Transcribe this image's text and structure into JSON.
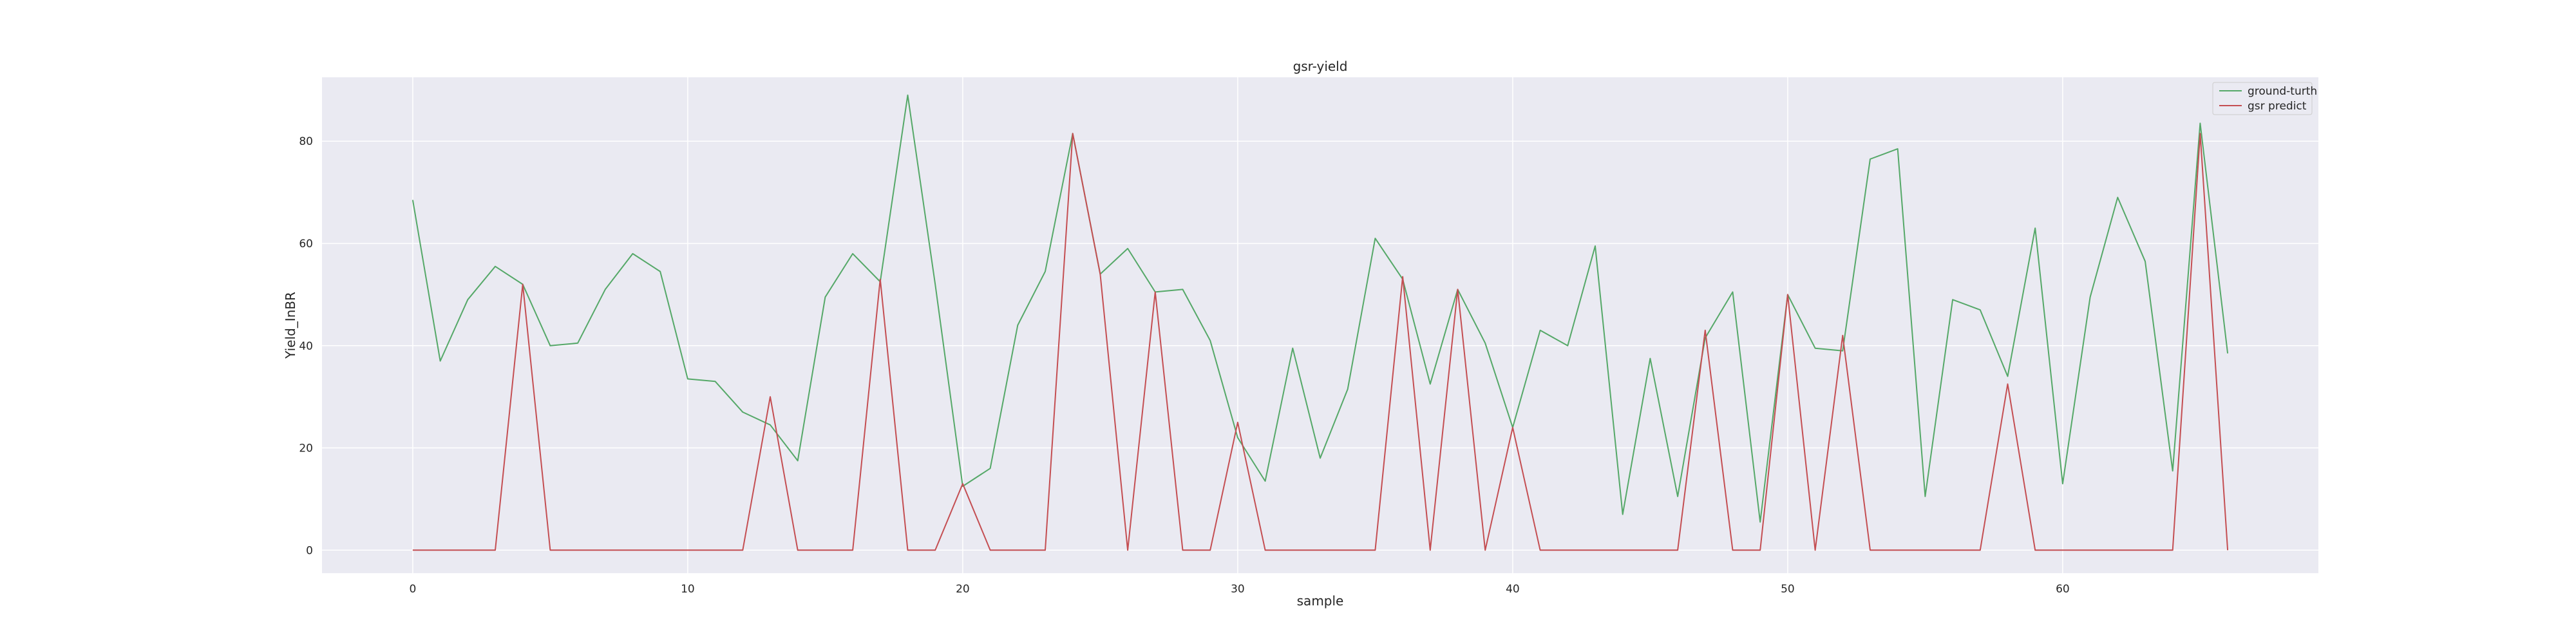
{
  "chart_data": {
    "type": "line",
    "title": "gsr-yield",
    "xlabel": "sample",
    "ylabel": "Yield_InBR",
    "xlim": [
      -3.3,
      69.3
    ],
    "ylim": [
      -4.5,
      92.5
    ],
    "xticks": [
      0,
      10,
      20,
      30,
      40,
      50,
      60
    ],
    "yticks": [
      0,
      20,
      40,
      60,
      80
    ],
    "grid": true,
    "legend": "top-right",
    "x": [
      0,
      1,
      2,
      3,
      4,
      5,
      6,
      7,
      8,
      9,
      10,
      11,
      12,
      13,
      14,
      15,
      16,
      17,
      18,
      19,
      20,
      21,
      22,
      23,
      24,
      25,
      26,
      27,
      28,
      29,
      30,
      31,
      32,
      33,
      34,
      35,
      36,
      37,
      38,
      39,
      40,
      41,
      42,
      43,
      44,
      45,
      46,
      47,
      48,
      49,
      50,
      51,
      52,
      53,
      54,
      55,
      56,
      57,
      58,
      59,
      60,
      61,
      62,
      63,
      64,
      65,
      66
    ],
    "series": [
      {
        "name": "ground-turth",
        "color": "#55a868",
        "values": [
          68.5,
          37,
          49,
          55.5,
          52,
          40,
          40.5,
          51,
          58,
          54.5,
          33.5,
          33,
          27,
          24.5,
          17.5,
          49.5,
          58,
          52.5,
          89,
          52,
          12.5,
          16,
          44,
          54.5,
          81.5,
          54,
          59,
          50.5,
          51,
          41,
          22,
          13.5,
          39.5,
          18,
          31.5,
          61,
          53,
          32.5,
          51,
          40.5,
          24,
          43,
          40,
          59.5,
          7,
          37.5,
          10.5,
          41.5,
          50.5,
          5.5,
          50,
          39.5,
          39,
          76.5,
          78.5,
          10.5,
          49,
          47,
          34,
          63,
          13,
          49.5,
          69,
          56.5,
          15.5,
          83.5,
          38.5
        ]
      },
      {
        "name": "gsr predict",
        "color": "#c44e52",
        "values": [
          0,
          0,
          0,
          0,
          52,
          0,
          0,
          0,
          0,
          0,
          0,
          0,
          0,
          30,
          0,
          0,
          0,
          53,
          0,
          0,
          13,
          0,
          0,
          0,
          81.5,
          54,
          0,
          50.5,
          0,
          0,
          25,
          0,
          0,
          0,
          0,
          0,
          53.5,
          0,
          51,
          0,
          24,
          0,
          0,
          0,
          0,
          0,
          0,
          43,
          0,
          0,
          50,
          0,
          42,
          0,
          0,
          0,
          0,
          0,
          32.5,
          0,
          0,
          0,
          0,
          0,
          0,
          81.5,
          0
        ]
      }
    ]
  }
}
